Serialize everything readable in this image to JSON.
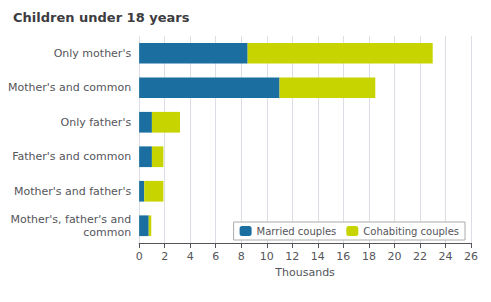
{
  "chart_data": {
    "type": "bar",
    "orientation": "horizontal",
    "stacked": true,
    "title": "Children under 18 years",
    "xlabel": "Thousands",
    "categories": [
      "Only mother's",
      "Mother's and common",
      "Only father's",
      "Father's and common",
      "Mother's and father's",
      "Mother's, father's and\ncommon"
    ],
    "series": [
      {
        "name": "Married couples",
        "color": "#1a6fa0",
        "values": [
          8.5,
          11.0,
          1.0,
          1.0,
          0.4,
          0.75
        ]
      },
      {
        "name": "Cohabiting couples",
        "color": "#c8d400",
        "values": [
          14.5,
          7.5,
          2.2,
          0.9,
          1.5,
          0.2
        ]
      }
    ],
    "xlim": [
      0,
      26
    ],
    "xticks": [
      0,
      2,
      4,
      6,
      8,
      10,
      12,
      14,
      16,
      18,
      20,
      22,
      24,
      26
    ],
    "grid": true,
    "legend": "lower right"
  }
}
